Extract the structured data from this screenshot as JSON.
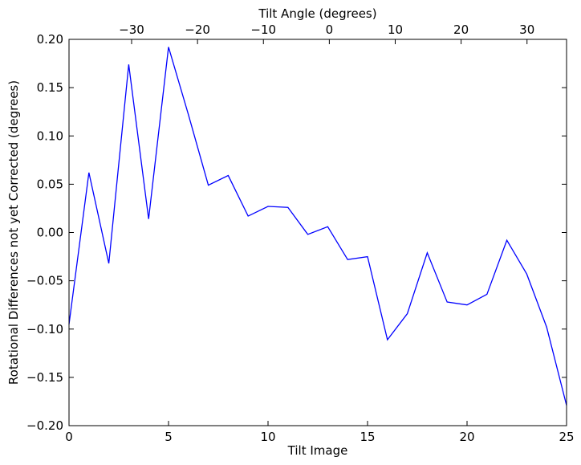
{
  "chart_data": {
    "type": "line",
    "xlabel": "Tilt Image",
    "ylabel": "Rotational Differences not yet Corrected (degrees)",
    "top_xlabel": "Tilt Angle (degrees)",
    "xlim": [
      0,
      25
    ],
    "ylim": [
      -0.2,
      0.2
    ],
    "top_xlim": [
      -39.5,
      36
    ],
    "x_ticks": [
      0,
      5,
      10,
      15,
      20,
      25
    ],
    "y_ticks": [
      -0.2,
      -0.15,
      -0.1,
      -0.05,
      0.0,
      0.05,
      0.1,
      0.15,
      0.2
    ],
    "y_tick_labels": [
      "−0.20",
      "−0.15",
      "−0.10",
      "−0.05",
      "0.00",
      "0.05",
      "0.10",
      "0.15",
      "0.20"
    ],
    "top_x_ticks": [
      -30,
      -20,
      -10,
      0,
      10,
      20,
      30
    ],
    "top_x_tick_labels": [
      "−30",
      "−20",
      "−10",
      "0",
      "10",
      "20",
      "30"
    ],
    "grid": false,
    "legend": "none",
    "line_color": "#0000ff",
    "series": [
      {
        "x": [
          0,
          1,
          2,
          3,
          4,
          5,
          6,
          7,
          8,
          9,
          10,
          11,
          12,
          13,
          14,
          15,
          16,
          17,
          18,
          19,
          20,
          21,
          22,
          23,
          24,
          25
        ],
        "values": [
          -0.095,
          0.062,
          -0.032,
          0.174,
          0.014,
          0.192,
          0.122,
          0.049,
          0.059,
          0.017,
          0.027,
          0.026,
          -0.002,
          0.006,
          -0.028,
          -0.025,
          -0.111,
          -0.084,
          -0.021,
          -0.072,
          -0.075,
          -0.064,
          -0.008,
          -0.043,
          -0.098,
          -0.179
        ]
      }
    ]
  }
}
